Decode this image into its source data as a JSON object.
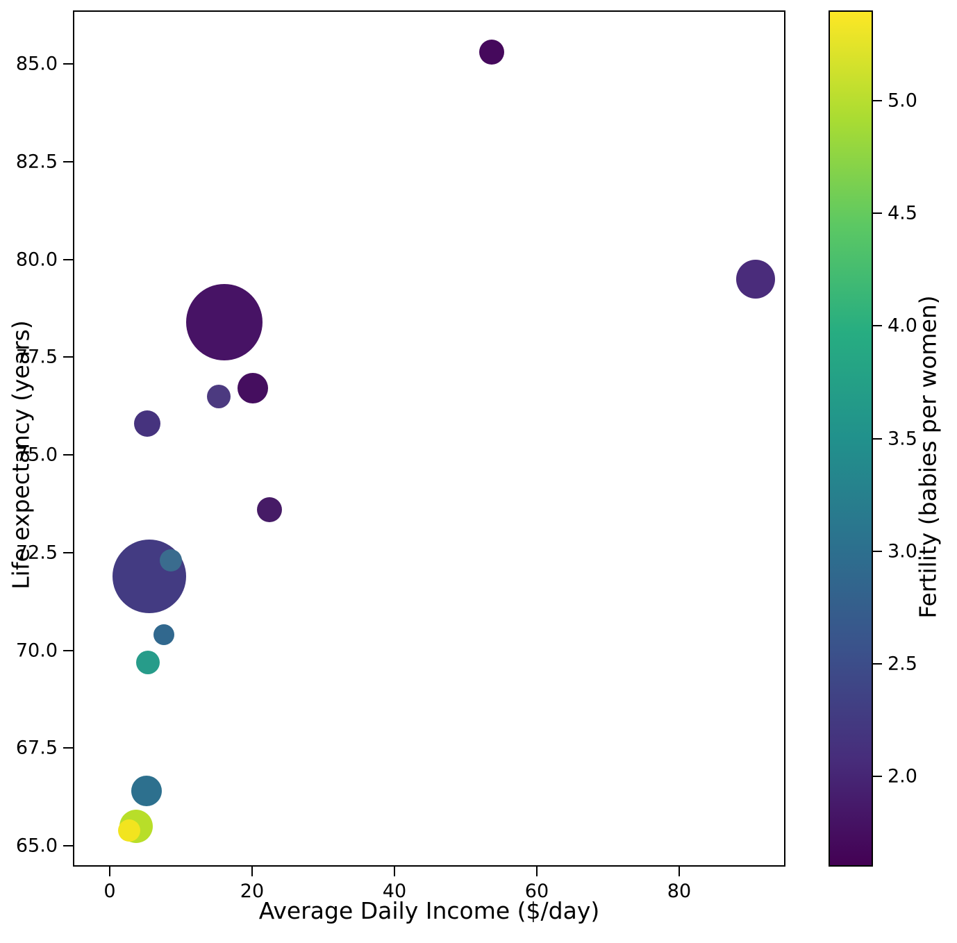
{
  "figure": {
    "background": "#ffffff",
    "xlabel": "Average Daily Income ($/day)",
    "ylabel": "Life expectancy (years)",
    "colorbar_label": "Fertility (babies per women)"
  },
  "chart_data": {
    "type": "scatter",
    "title": "",
    "xlabel": "Average Daily Income ($/day)",
    "ylabel": "Life expectancy (years)",
    "colormap": "viridis",
    "grid": false,
    "legend": "none (colorbar on right encodes fertility; bubble area encodes population)",
    "xlim": [
      -5.17,
      94.93
    ],
    "ylim": [
      64.47,
      86.37
    ],
    "x_ticks": [
      {
        "value": 0,
        "label": "0"
      },
      {
        "value": 20,
        "label": "20"
      },
      {
        "value": 40,
        "label": "40"
      },
      {
        "value": 60,
        "label": "60"
      },
      {
        "value": 80,
        "label": "80"
      }
    ],
    "y_ticks": [
      {
        "value": 65.0,
        "label": "65.0"
      },
      {
        "value": 67.5,
        "label": "67.5"
      },
      {
        "value": 70.0,
        "label": "70.0"
      },
      {
        "value": 72.5,
        "label": "72.5"
      },
      {
        "value": 75.0,
        "label": "75.0"
      },
      {
        "value": 77.5,
        "label": "77.5"
      },
      {
        "value": 80.0,
        "label": "80.0"
      },
      {
        "value": 82.5,
        "label": "82.5"
      },
      {
        "value": 85.0,
        "label": "85.0"
      }
    ],
    "colorbar": {
      "label": "Fertility (babies per women)",
      "vmin": 1.6,
      "vmax": 5.4,
      "ticks": [
        {
          "value": 2.0,
          "label": "2.0"
        },
        {
          "value": 2.5,
          "label": "2.5"
        },
        {
          "value": 3.0,
          "label": "3.0"
        },
        {
          "value": 3.5,
          "label": "3.5"
        },
        {
          "value": 4.0,
          "label": "4.0"
        },
        {
          "value": 4.5,
          "label": "4.5"
        },
        {
          "value": 5.0,
          "label": "5.0"
        }
      ],
      "gradient_stops": [
        {
          "pos": 0.0,
          "color": "#440154"
        },
        {
          "pos": 0.125,
          "color": "#472d7b"
        },
        {
          "pos": 0.25,
          "color": "#3b518b"
        },
        {
          "pos": 0.375,
          "color": "#2c718e"
        },
        {
          "pos": 0.5,
          "color": "#21918c"
        },
        {
          "pos": 0.625,
          "color": "#27ad81"
        },
        {
          "pos": 0.75,
          "color": "#5cc863"
        },
        {
          "pos": 0.875,
          "color": "#aadc32"
        },
        {
          "pos": 1.0,
          "color": "#fde725"
        }
      ]
    },
    "points": [
      {
        "income": 53.7,
        "life_expectancy": 85.3,
        "fertility": 1.65,
        "color": "#45095C",
        "radius_px": 18
      },
      {
        "income": 90.7,
        "life_expectancy": 79.5,
        "fertility": 2.1,
        "color": "#4A2C7B",
        "radius_px": 28
      },
      {
        "income": 16.1,
        "life_expectancy": 78.4,
        "fertility": 1.8,
        "color": "#471365",
        "radius_px": 55
      },
      {
        "income": 20.1,
        "life_expectancy": 76.7,
        "fertility": 1.75,
        "color": "#450E5F",
        "radius_px": 22
      },
      {
        "income": 15.3,
        "life_expectancy": 76.5,
        "fertility": 2.4,
        "color": "#4C3A80",
        "radius_px": 17
      },
      {
        "income": 5.3,
        "life_expectancy": 75.8,
        "fertility": 2.25,
        "color": "#46337E",
        "radius_px": 19
      },
      {
        "income": 22.4,
        "life_expectancy": 73.6,
        "fertility": 1.9,
        "color": "#461B66",
        "radius_px": 18
      },
      {
        "income": 5.6,
        "life_expectancy": 71.9,
        "fertility": 2.4,
        "color": "#433B82",
        "radius_px": 53
      },
      {
        "income": 8.6,
        "life_expectancy": 72.3,
        "fertility": 3.3,
        "color": "#3A6C8E",
        "radius_px": 16
      },
      {
        "income": 7.6,
        "life_expectancy": 70.4,
        "fertility": 3.25,
        "color": "#31688E",
        "radius_px": 15
      },
      {
        "income": 5.4,
        "life_expectancy": 69.7,
        "fertility": 3.9,
        "color": "#279C8A",
        "radius_px": 17
      },
      {
        "income": 5.2,
        "life_expectancy": 66.4,
        "fertility": 3.4,
        "color": "#2D708E",
        "radius_px": 22
      },
      {
        "income": 3.7,
        "life_expectancy": 65.5,
        "fertility": 4.9,
        "color": "#B8DE29",
        "radius_px": 24
      },
      {
        "income": 2.7,
        "life_expectancy": 65.4,
        "fertility": 5.3,
        "color": "#F2E41F",
        "radius_px": 16
      }
    ]
  }
}
